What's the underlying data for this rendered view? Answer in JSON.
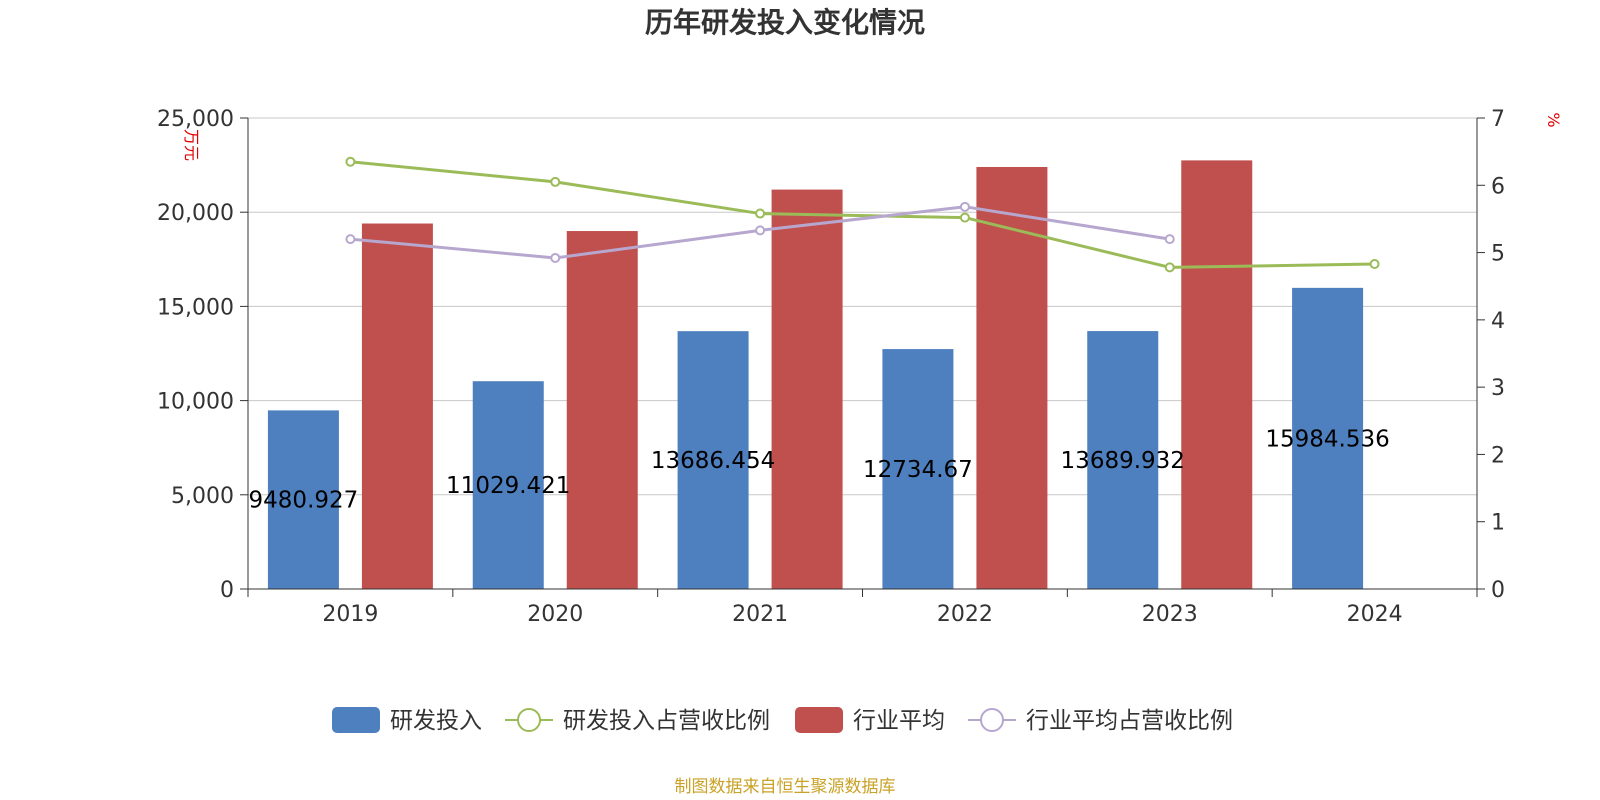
{
  "colors": {
    "rd_bar": "#4e7fbe",
    "industry_bar": "#c0504d",
    "rd_ratio_line": "#9bbb59",
    "industry_ratio_line": "#b7a7cf",
    "grid": "#c8c8c8",
    "axis": "#333333",
    "unit_text": "#e00000",
    "source_text": "#c9a227"
  },
  "chart_data": {
    "type": "bar",
    "title": "历年研发投入变化情况",
    "categories": [
      "2019",
      "2020",
      "2021",
      "2022",
      "2023",
      "2024"
    ],
    "y_left": {
      "unit": "万元",
      "min": 0,
      "max": 25000,
      "step": 5000,
      "tick_labels": [
        "0",
        "5,000",
        "10,000",
        "15,000",
        "20,000",
        "25,000"
      ]
    },
    "y_right": {
      "unit": "%",
      "min": 0,
      "max": 7,
      "step": 1,
      "tick_labels": [
        "0",
        "1",
        "2",
        "3",
        "4",
        "5",
        "6",
        "7"
      ]
    },
    "series": [
      {
        "name": "研发投入",
        "type": "bar",
        "axis": "left",
        "values": [
          9480.927,
          11029.421,
          13686.454,
          12734.67,
          13689.932,
          15984.536
        ],
        "data_labels": [
          "9480.927",
          "11029.421",
          "13686.454",
          "12734.67",
          "13689.932",
          "15984.536"
        ]
      },
      {
        "name": "研发投入占营收比例",
        "type": "line",
        "axis": "right",
        "values": [
          6.35,
          6.05,
          5.58,
          5.52,
          4.78,
          4.83
        ]
      },
      {
        "name": "行业平均",
        "type": "bar",
        "axis": "left",
        "values": [
          19400,
          19000,
          21200,
          22400,
          22750,
          null
        ]
      },
      {
        "name": "行业平均占营收比例",
        "type": "line",
        "axis": "right",
        "values": [
          5.2,
          4.92,
          5.33,
          5.68,
          5.2,
          null
        ]
      }
    ],
    "legend_position": "bottom-center",
    "grid": true
  },
  "source_note": "制图数据来自恒生聚源数据库"
}
